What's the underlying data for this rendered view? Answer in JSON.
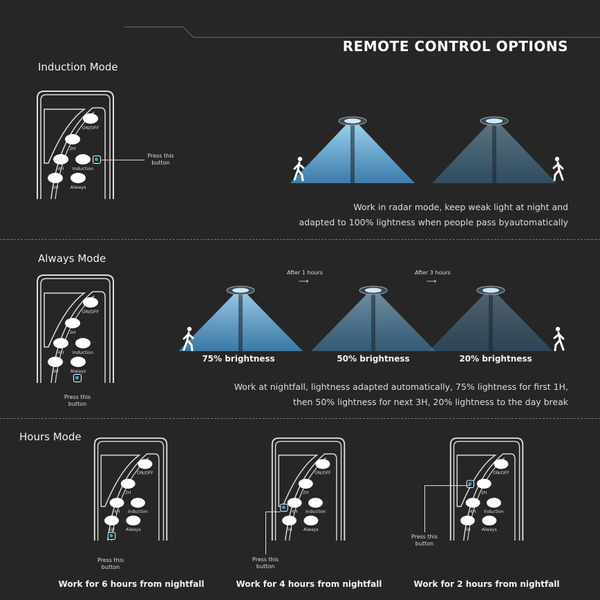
{
  "title": "REMOTE CONTROL OPTIONS",
  "remote_buttons": {
    "onoff": "ON/OFF",
    "h2": "2H",
    "h4": "4H",
    "induction": "Induction",
    "h6": "6H",
    "always": "Always"
  },
  "press_label": "Press this button",
  "induction": {
    "heading": "Induction Mode",
    "desc_line1": "Work in radar mode, keep weak light at night and",
    "desc_line2": "adapted to 100% lightness when people pass byautomatically"
  },
  "always": {
    "heading": "Always Mode",
    "after1": "After 1 hours",
    "after3": "After 3 hours",
    "captions": [
      "75% brightness",
      "50% brightness",
      "20% brightness"
    ],
    "desc_line1": "Work at nightfall, lightness adapted automatically, 75% lightness for first 1H,",
    "desc_line2": "then 50% lightness for next 3H, 20% lightness to the day break"
  },
  "hours": {
    "heading": "Hours Mode",
    "captions": [
      "Work for 6 hours from nightfall",
      "Work for 4 hours from nightfall",
      "Work for 2 hours from nightfall"
    ]
  },
  "colors": {
    "background": "#262626",
    "indicator": "#2aa7e0",
    "beam": "#5fa8d8"
  }
}
